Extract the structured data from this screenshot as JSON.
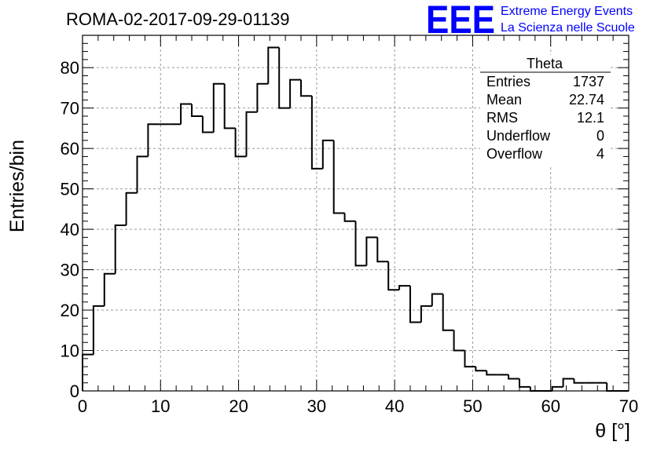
{
  "header": {
    "title": "ROMA-02-2017-09-29-01139",
    "logo_text": "EEE",
    "logo_line1": "Extreme Energy Events",
    "logo_line2": "La Scienza nelle Scuole",
    "logo_color": "#0000ff"
  },
  "stats_box": {
    "title": "Theta",
    "rows": [
      {
        "label": "Entries",
        "value": "1737"
      },
      {
        "label": "Mean",
        "value": "22.74"
      },
      {
        "label": "RMS",
        "value": "12.1"
      },
      {
        "label": "Underflow",
        "value": "0"
      },
      {
        "label": "Overflow",
        "value": "4"
      }
    ]
  },
  "chart_data": {
    "type": "bar",
    "style": "step-histogram",
    "xlabel": "θ [°]",
    "ylabel": "Entries/bin",
    "xlim": [
      0,
      70
    ],
    "ylim": [
      0,
      88
    ],
    "grid": true,
    "x_ticks": [
      0,
      10,
      20,
      30,
      40,
      50,
      60,
      70
    ],
    "y_ticks": [
      0,
      10,
      20,
      30,
      40,
      50,
      60,
      70,
      80
    ],
    "bin_width": 1.4,
    "values": [
      9,
      21,
      29,
      41,
      49,
      58,
      66,
      66,
      66,
      71,
      68,
      64,
      76,
      65,
      58,
      69,
      76,
      85,
      70,
      77,
      73,
      55,
      62,
      44,
      42,
      31,
      38,
      32,
      25,
      26,
      17,
      21,
      24,
      15,
      10,
      6,
      5,
      4,
      4,
      3,
      1,
      0,
      0,
      1,
      3,
      2,
      2,
      2,
      0,
      0
    ]
  }
}
